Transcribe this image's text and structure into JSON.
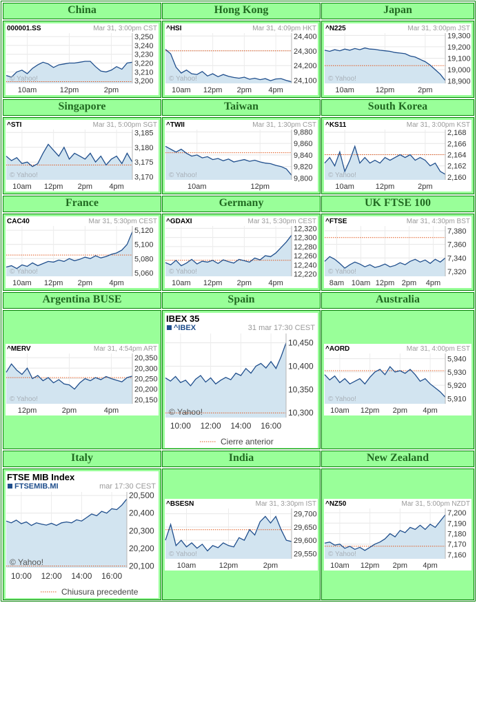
{
  "colors": {
    "header_bg": "#99ff99",
    "header_text": "#216a21",
    "border": "#008000",
    "line": "#1f4e8c",
    "area": "#d2e4f0",
    "prev_close": "#e0561b",
    "watermark": "#a8b0b8"
  },
  "watermark": "© Yahoo!",
  "chart_data": [
    {
      "type": "line",
      "region": "China",
      "symbol": "000001.SS",
      "timestamp": "Mar 31, 3:00pm CST",
      "x_ticks": [
        "10am",
        "12pm",
        "2pm"
      ],
      "y_ticks": [
        3200,
        3210,
        3220,
        3230,
        3240,
        3250
      ],
      "ylim": [
        3197,
        3254
      ],
      "prev_close": 3199,
      "values": [
        3206,
        3204,
        3210,
        3212,
        3208,
        3214,
        3218,
        3221,
        3219,
        3215,
        3218,
        3219,
        3220,
        3220,
        3221,
        3222,
        3222,
        3216,
        3211,
        3210,
        3212,
        3216,
        3213,
        3220,
        3221
      ]
    },
    {
      "type": "line",
      "region": "Hong Kong",
      "symbol": "^HSI",
      "timestamp": "Mar 31, 4:09pm HKT",
      "x_ticks": [
        "10am",
        "12pm",
        "2pm",
        "4pm"
      ],
      "y_ticks": [
        24100,
        24200,
        24300,
        24400
      ],
      "ylim": [
        24080,
        24420
      ],
      "prev_close": 24300,
      "values": [
        24310,
        24280,
        24190,
        24150,
        24170,
        24145,
        24140,
        24160,
        24130,
        24145,
        24125,
        24140,
        24128,
        24120,
        24115,
        24122,
        24108,
        24115,
        24105,
        24112,
        24098,
        24110,
        24112,
        24100,
        24090
      ]
    },
    {
      "type": "line",
      "region": "Japan",
      "symbol": "^N225",
      "timestamp": "Mar 31, 3:00pm JST",
      "x_ticks": [
        "10am",
        "12pm",
        "2pm"
      ],
      "y_ticks": [
        18900,
        19000,
        19100,
        19200,
        19300
      ],
      "ylim": [
        18880,
        19320
      ],
      "prev_close": 19035,
      "values": [
        19170,
        19160,
        19175,
        19165,
        19180,
        19170,
        19185,
        19175,
        19190,
        19180,
        19178,
        19170,
        19165,
        19160,
        19150,
        19145,
        19140,
        19120,
        19110,
        19090,
        19070,
        19040,
        19000,
        18960,
        18905
      ]
    },
    {
      "type": "line",
      "region": "Singapore",
      "symbol": "^STI",
      "timestamp": "Mar 31, 5:00pm SGT",
      "x_ticks": [
        "10am",
        "12pm",
        "2pm",
        "4pm"
      ],
      "y_ticks": [
        3170,
        3175,
        3180,
        3185
      ],
      "ylim": [
        3169,
        3186
      ],
      "prev_close": 3174,
      "values": [
        3177,
        3175.5,
        3176.5,
        3174.5,
        3175,
        3173.5,
        3174.5,
        3178,
        3181,
        3179,
        3177,
        3180,
        3176,
        3178,
        3177,
        3176,
        3178,
        3175,
        3177,
        3174,
        3176,
        3177,
        3174.5,
        3178,
        3175
      ]
    },
    {
      "type": "line",
      "region": "Taiwan",
      "symbol": "^TWII",
      "timestamp": "Mar 31, 1:30pm CST",
      "x_ticks": [
        "10am",
        "12pm"
      ],
      "y_ticks": [
        9800,
        9820,
        9840,
        9860,
        9880
      ],
      "ylim": [
        9797,
        9884
      ],
      "prev_close": 9844,
      "values": [
        9855,
        9850,
        9845,
        9850,
        9843,
        9838,
        9840,
        9835,
        9837,
        9832,
        9834,
        9830,
        9833,
        9828,
        9830,
        9832,
        9829,
        9831,
        9828,
        9826,
        9825,
        9822,
        9820,
        9816,
        9805
      ]
    },
    {
      "type": "line",
      "region": "South Korea",
      "symbol": "^KS11",
      "timestamp": "Mar 31, 3:00pm KST",
      "x_ticks": [
        "10am",
        "12pm",
        "2pm"
      ],
      "y_ticks": [
        2160,
        2162,
        2164,
        2166,
        2168
      ],
      "ylim": [
        2159.5,
        2168.5
      ],
      "prev_close": 2164,
      "values": [
        2162.5,
        2163.5,
        2162,
        2164.5,
        2161,
        2163,
        2165.5,
        2162.5,
        2163.5,
        2162.5,
        2163,
        2162.5,
        2163.5,
        2163,
        2163.5,
        2164,
        2163.5,
        2164,
        2163,
        2163.5,
        2163,
        2162,
        2162.5,
        2161,
        2160.5
      ]
    },
    {
      "type": "line",
      "region": "France",
      "symbol": "CAC40",
      "timestamp": "Mar 31, 5:30pm CEST",
      "x_ticks": [
        "10am",
        "12pm",
        "2pm",
        "4pm"
      ],
      "y_ticks": [
        5060,
        5080,
        5100,
        5120
      ],
      "ylim": [
        5055,
        5126
      ],
      "prev_close": 5085,
      "values": [
        5068,
        5070,
        5066,
        5071,
        5069,
        5074,
        5070,
        5073,
        5076,
        5075,
        5078,
        5076,
        5080,
        5077,
        5079,
        5082,
        5080,
        5084,
        5081,
        5083,
        5086,
        5088,
        5092,
        5100,
        5118
      ]
    },
    {
      "type": "line",
      "region": "Germany",
      "symbol": "^GDAXI",
      "timestamp": "Mar 31, 5:30pm CEST",
      "x_ticks": [
        "10am",
        "12pm",
        "2pm",
        "4pm"
      ],
      "y_ticks": [
        12220,
        12240,
        12260,
        12280,
        12300,
        12320
      ],
      "ylim": [
        12215,
        12325
      ],
      "prev_close": 12250,
      "values": [
        12245,
        12240,
        12250,
        12238,
        12244,
        12252,
        12242,
        12248,
        12246,
        12250,
        12243,
        12251,
        12247,
        12244,
        12252,
        12249,
        12246,
        12255,
        12251,
        12260,
        12258,
        12266,
        12278,
        12290,
        12305
      ]
    },
    {
      "type": "line",
      "region": "UK FTSE 100",
      "symbol": "^FTSE",
      "timestamp": "Mar 31, 4:30pm BST",
      "x_ticks": [
        "8am",
        "10am",
        "12pm",
        "2pm",
        "4pm"
      ],
      "y_ticks": [
        7320,
        7340,
        7360,
        7380
      ],
      "ylim": [
        7313,
        7387
      ],
      "prev_close": 7370,
      "values": [
        7335,
        7342,
        7338,
        7332,
        7325,
        7330,
        7334,
        7331,
        7327,
        7330,
        7326,
        7328,
        7331,
        7327,
        7329,
        7333,
        7330,
        7335,
        7338,
        7334,
        7337,
        7332,
        7338,
        7334,
        7340
      ]
    },
    {
      "type": "line",
      "region": "Argentina BUSE",
      "symbol": "^MERV",
      "timestamp": "Mar 31, 4:54pm ART",
      "x_ticks": [
        "12pm",
        "2pm",
        "4pm"
      ],
      "y_ticks": [
        20150,
        20200,
        20250,
        20300,
        20350
      ],
      "ylim": [
        20130,
        20370
      ],
      "prev_close": 20255,
      "values": [
        20280,
        20320,
        20290,
        20270,
        20300,
        20250,
        20265,
        20240,
        20255,
        20230,
        20245,
        20225,
        20220,
        20200,
        20230,
        20250,
        20240,
        20255,
        20245,
        20260,
        20250,
        20242,
        20235,
        20255,
        20262
      ]
    },
    {
      "type": "line",
      "region": "Spain",
      "title": "IBEX 35",
      "symbol": "^IBEX",
      "timestamp": "31 mar 17:30 CEST",
      "legend": "Cierre anterior",
      "x_ticks": [
        "10:00",
        "12:00",
        "14:00",
        "16:00"
      ],
      "y_ticks": [
        10300,
        10350,
        10400,
        10450
      ],
      "ylim": [
        10290,
        10470
      ],
      "prev_close": 10300,
      "values": [
        10375,
        10368,
        10378,
        10365,
        10370,
        10358,
        10372,
        10380,
        10366,
        10375,
        10362,
        10370,
        10376,
        10371,
        10385,
        10380,
        10395,
        10385,
        10400,
        10406,
        10396,
        10410,
        10395,
        10420,
        10450
      ]
    },
    {
      "type": "line",
      "region": "Australia",
      "symbol": "^AORD",
      "timestamp": "Mar 31, 4:00pm EST",
      "x_ticks": [
        "10am",
        "12pm",
        "2pm",
        "4pm"
      ],
      "y_ticks": [
        5910,
        5920,
        5930,
        5940
      ],
      "ylim": [
        5906,
        5944
      ],
      "prev_close": 5931,
      "values": [
        5928,
        5924,
        5927,
        5922,
        5925,
        5921,
        5923,
        5925,
        5921,
        5926,
        5930,
        5932,
        5928,
        5934,
        5930,
        5931,
        5929,
        5932,
        5928,
        5923,
        5925,
        5921,
        5918,
        5915,
        5911
      ]
    },
    {
      "type": "line",
      "region": "Italy",
      "title": "FTSE MIB Index",
      "symbol": "FTSEMIB.MI",
      "timestamp": "mar 17:30 CEST",
      "legend": "Chiusura precedente",
      "x_ticks": [
        "10:00",
        "12:00",
        "14:00",
        "16:00"
      ],
      "y_ticks": [
        20100,
        20200,
        20300,
        20400,
        20500
      ],
      "ylim": [
        20090,
        20520
      ],
      "prev_close": 20100,
      "values": [
        20355,
        20345,
        20360,
        20340,
        20350,
        20330,
        20345,
        20338,
        20332,
        20342,
        20330,
        20345,
        20350,
        20345,
        20362,
        20355,
        20375,
        20395,
        20385,
        20410,
        20400,
        20425,
        20420,
        20445,
        20480
      ]
    },
    {
      "type": "line",
      "region": "India",
      "symbol": "^BSESN",
      "timestamp": "Mar 31, 3:30pm IST",
      "x_ticks": [
        "10am",
        "12pm",
        "2pm"
      ],
      "y_ticks": [
        29550,
        29600,
        29650,
        29700
      ],
      "ylim": [
        29530,
        29720
      ],
      "prev_close": 29640,
      "values": [
        29600,
        29660,
        29580,
        29600,
        29575,
        29590,
        29570,
        29585,
        29560,
        29580,
        29572,
        29590,
        29580,
        29575,
        29610,
        29600,
        29640,
        29620,
        29670,
        29690,
        29665,
        29690,
        29640,
        29600,
        29595
      ]
    },
    {
      "type": "line",
      "region": "New Zealand",
      "symbol": "^NZ50",
      "timestamp": "Mar 31, 5:00pm NZDT",
      "x_ticks": [
        "10am",
        "12pm",
        "2pm",
        "4pm"
      ],
      "y_ticks": [
        7160,
        7170,
        7180,
        7190,
        7200
      ],
      "ylim": [
        7156,
        7204
      ],
      "prev_close": 7168,
      "values": [
        7171,
        7172,
        7169,
        7170,
        7166,
        7168,
        7165,
        7167,
        7164,
        7167,
        7170,
        7172,
        7175,
        7180,
        7177,
        7183,
        7181,
        7186,
        7184,
        7188,
        7184,
        7189,
        7186,
        7192,
        7198
      ]
    }
  ]
}
